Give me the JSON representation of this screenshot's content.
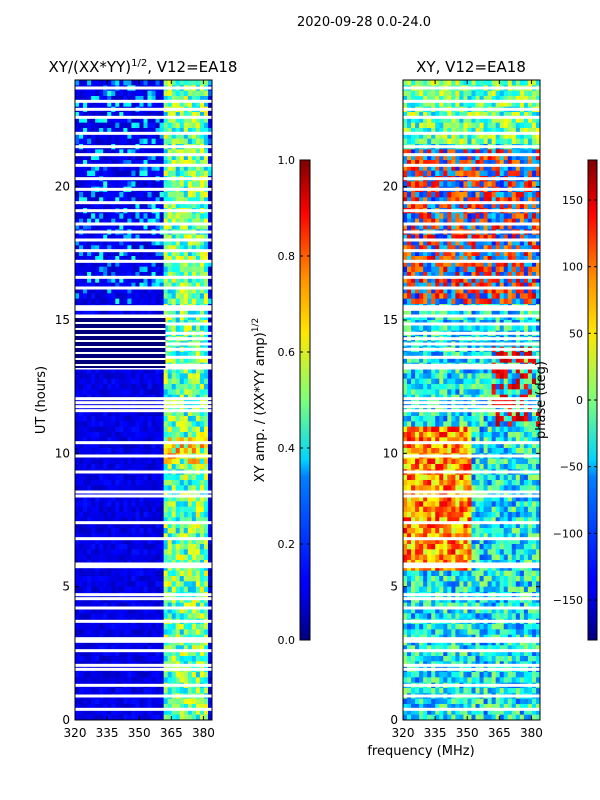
{
  "figure": {
    "suptitle": "2020-09-28 0.0-24.0",
    "shared_xlabel": "frequency (MHz)"
  },
  "chart_data": [
    {
      "type": "heatmap",
      "title_main": "XY/(XX*YY)",
      "title_sup": "1/2",
      "title_suffix": ", V12=EA18",
      "xlabel": "",
      "ylabel": "UT (hours)",
      "xlim": [
        320,
        384
      ],
      "ylim": [
        0,
        24
      ],
      "xticks": [
        320,
        335,
        350,
        365,
        380
      ],
      "yticks": [
        0,
        5,
        10,
        15,
        20
      ],
      "colorbar": {
        "label": "XY amp. / (XX*YY amp)",
        "label_sup": "1/2",
        "range": [
          0,
          1
        ],
        "ticks": [
          "0.0",
          "0.2",
          "0.4",
          "0.6",
          "0.8",
          "1.0"
        ],
        "tick_values": [
          0,
          0.2,
          0.4,
          0.6,
          0.8,
          1.0
        ],
        "colormap": "jet"
      }
    },
    {
      "type": "heatmap",
      "title": "XY, V12=EA18",
      "xlabel": "",
      "ylabel": "",
      "xlim": [
        320,
        384
      ],
      "ylim": [
        0,
        24
      ],
      "xticks": [
        320,
        335,
        350,
        365,
        380
      ],
      "yticks": [
        0,
        5,
        10,
        15,
        20
      ],
      "colorbar": {
        "label": "phase (deg)",
        "range": [
          -180,
          180
        ],
        "ticks": [
          "−150",
          "−100",
          "−50",
          "0",
          "50",
          "100",
          "150"
        ],
        "tick_values": [
          -150,
          -100,
          -50,
          0,
          50,
          100,
          150
        ],
        "colormap": "jet"
      }
    }
  ],
  "flagged_hours": [
    0.4,
    0.9,
    1.3,
    1.9,
    2.05,
    2.6,
    2.95,
    3.05,
    3.7,
    4.2,
    4.55,
    4.7,
    5.75,
    5.85,
    6.8,
    7.4,
    8.4,
    8.55,
    9.3,
    9.9,
    10.4,
    11.6,
    11.75,
    11.9,
    12.05,
    13.2,
    13.3,
    13.6,
    13.9,
    14.1,
    14.3,
    14.5,
    14.85,
    15.15,
    15.4,
    15.5,
    16.2,
    16.6,
    17.2,
    17.6,
    18.0,
    18.3,
    18.6,
    19.1,
    19.4,
    19.9,
    20.3,
    20.8,
    21.2,
    21.5,
    22.0,
    22.6,
    22.9,
    23.2,
    23.7
  ],
  "flagged_blocks": [
    [
      13.2,
      15.15
    ]
  ]
}
